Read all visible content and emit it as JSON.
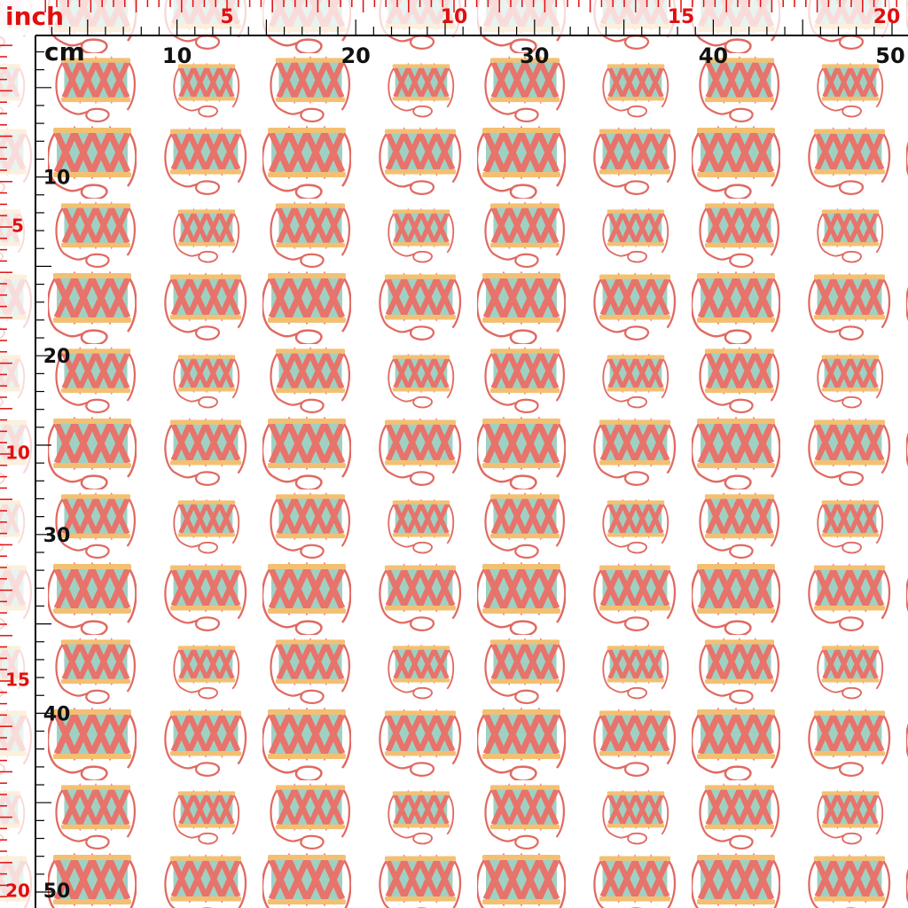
{
  "ruler": {
    "inch_unit": "inch",
    "cm_unit": "cm",
    "inch_top": [
      "5",
      "10",
      "15",
      "20"
    ],
    "cm_top": [
      "10",
      "20",
      "30",
      "40",
      "50"
    ],
    "inch_left": [
      "5",
      "10",
      "15",
      "20"
    ],
    "cm_left": [
      "10",
      "20",
      "30",
      "40",
      "50"
    ]
  }
}
